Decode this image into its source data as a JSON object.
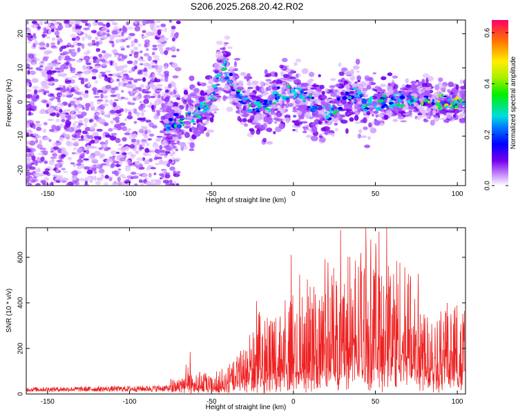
{
  "title": "S206.2025.268.20.42.R02",
  "colors": {
    "snr_line": "#ee2222",
    "dot_light": "#ddbbff",
    "dot_mid": "#a855ff",
    "dot_dark": "#7700ee"
  },
  "chart_data": [
    {
      "type": "heatmap",
      "name": "spectrogram",
      "xlabel": "Height of straight line (km)",
      "ylabel": "Frequency (Hz)",
      "xlim": [
        -163,
        105
      ],
      "ylim": [
        -24.5,
        24
      ],
      "xticks": [
        -150,
        -100,
        -50,
        0,
        50,
        100
      ],
      "yticks": [
        -20,
        -10,
        0,
        10,
        20
      ],
      "colorbar": {
        "label": "Normalized spectral amplitude",
        "range": [
          0.0,
          0.65
        ],
        "ticks": [
          "0.0",
          "0.2",
          "0.4",
          "0.6"
        ]
      },
      "ridge_centers": [
        {
          "x": -75,
          "y": -6
        },
        {
          "x": -60,
          "y": -4
        },
        {
          "x": -50,
          "y": 0
        },
        {
          "x": -43,
          "y": 11
        },
        {
          "x": -30,
          "y": -1
        },
        {
          "x": -15,
          "y": -1
        },
        {
          "x": -8,
          "y": 3
        },
        {
          "x": 5,
          "y": 2
        },
        {
          "x": 20,
          "y": -4
        },
        {
          "x": 35,
          "y": 3
        },
        {
          "x": 45,
          "y": -1
        },
        {
          "x": 70,
          "y": 1
        },
        {
          "x": 90,
          "y": 0
        },
        {
          "x": 103,
          "y": 0
        }
      ]
    },
    {
      "type": "line",
      "name": "snr",
      "xlabel": "Height of straight line (km)",
      "ylabel": "SNR (10 * v/v)",
      "xlim": [
        -163,
        105
      ],
      "ylim": [
        0,
        730
      ],
      "xticks": [
        -150,
        -100,
        -50,
        0,
        50,
        100
      ],
      "yticks": [
        0,
        200,
        400,
        600
      ],
      "envelope": {
        "x": [
          -163,
          -100,
          -75,
          -65,
          -58,
          -50,
          -40,
          -30,
          -20,
          -10,
          0,
          10,
          20,
          30,
          40,
          50,
          60,
          70,
          80,
          90,
          100,
          105
        ],
        "y": [
          30,
          35,
          40,
          70,
          60,
          45,
          70,
          120,
          200,
          210,
          240,
          270,
          300,
          330,
          360,
          380,
          360,
          320,
          260,
          230,
          220,
          230
        ]
      }
    }
  ]
}
